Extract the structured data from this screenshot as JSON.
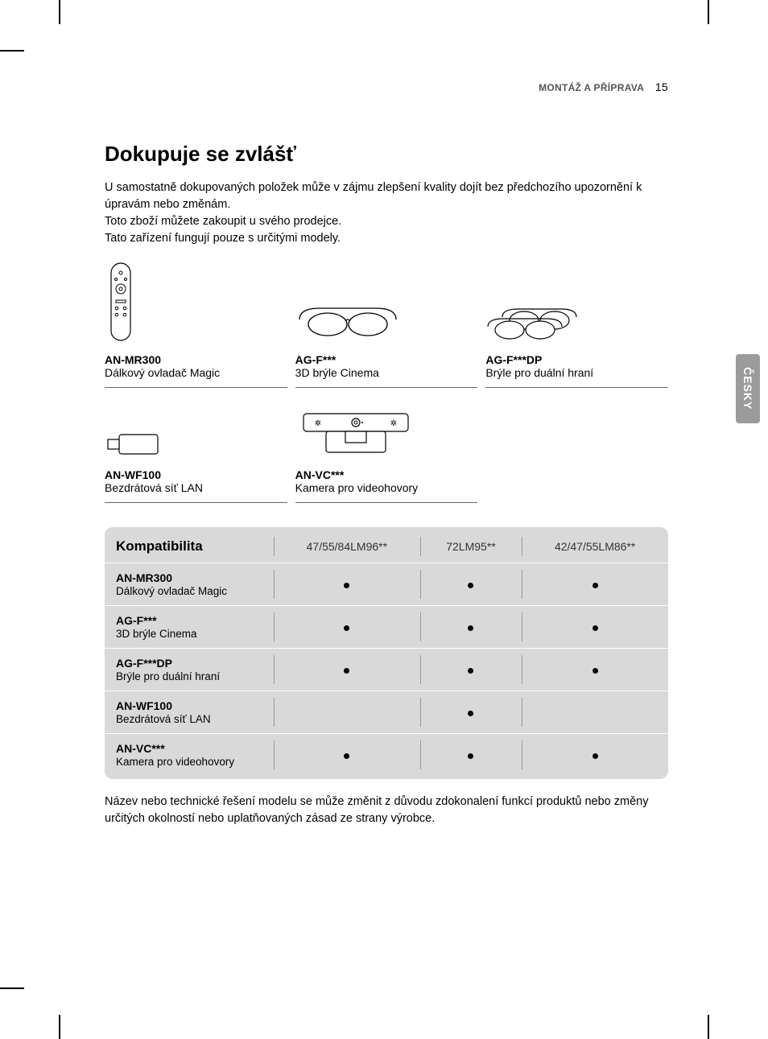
{
  "header": {
    "section": "MONTÁŽ A PŘÍPRAVA",
    "page": "15"
  },
  "sideTab": "ČESKY",
  "title": "Dokupuje se zvlášť",
  "intro": [
    "U samostatně dokupovaných položek může v zájmu zlepšení kvality dojít bez předchozího upozornění k úpravám nebo změnám.",
    "Toto zboží můžete zakoupit u svého prodejce.",
    "Tato zařízení fungují pouze s určitými modely."
  ],
  "items": [
    {
      "code": "AN-MR300",
      "desc": "Dálkový ovladač Magic"
    },
    {
      "code": "AG-F***",
      "desc": "3D brýle Cinema"
    },
    {
      "code": "AG-F***DP",
      "desc": "Brýle pro duální hraní"
    },
    {
      "code": "AN-WF100",
      "desc": "Bezdrátová síť LAN"
    },
    {
      "code": "AN-VC***",
      "desc": "Kamera pro videohovory"
    }
  ],
  "table": {
    "header": "Kompatibilita",
    "columns": [
      "47/55/84LM96**",
      "72LM95**",
      "42/47/55LM86**"
    ],
    "rows": [
      {
        "code": "AN-MR300",
        "desc": "Dálkový ovladač Magic",
        "cells": [
          true,
          true,
          true
        ]
      },
      {
        "code": "AG-F***",
        "desc": "3D brýle Cinema",
        "cells": [
          true,
          true,
          true
        ]
      },
      {
        "code": "AG-F***DP",
        "desc": "Brýle pro duální hraní",
        "cells": [
          true,
          true,
          true
        ]
      },
      {
        "code": "AN-WF100",
        "desc": "Bezdrátová síť LAN",
        "cells": [
          false,
          true,
          false
        ]
      },
      {
        "code": "AN-VC***",
        "desc": "Kamera pro videohovory",
        "cells": [
          true,
          true,
          true
        ]
      }
    ]
  },
  "footnote": "Název nebo technické řešení modelu se může změnit z důvodu zdokonalení funkcí produktů nebo změny určitých okolností nebo uplatňovaných zásad ze strany výrobce."
}
